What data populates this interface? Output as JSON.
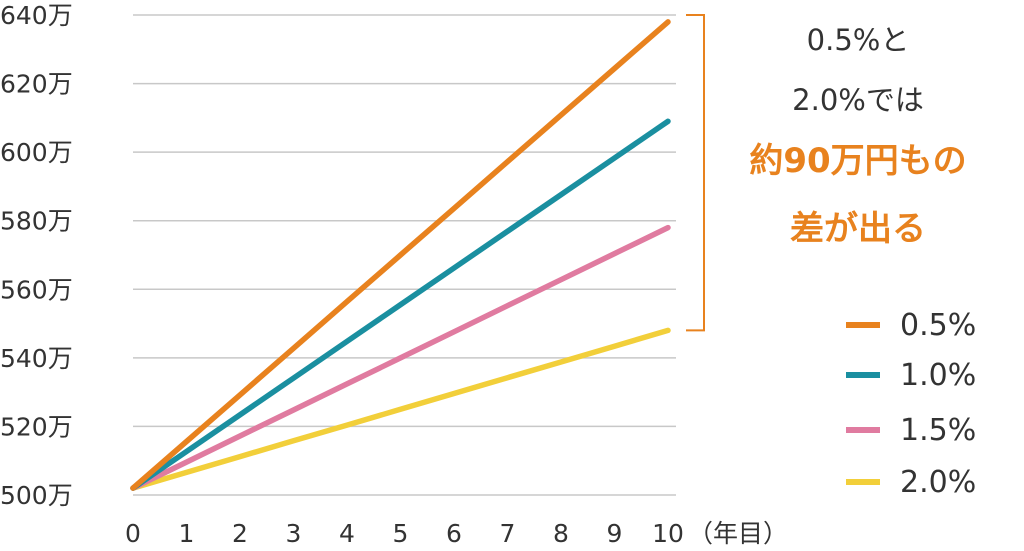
{
  "chart_data": {
    "type": "line",
    "x": [
      0,
      1,
      2,
      3,
      4,
      5,
      6,
      7,
      8,
      9,
      10
    ],
    "x_tick_labels": [
      "0",
      "1",
      "2",
      "3",
      "4",
      "5",
      "6",
      "7",
      "8",
      "9",
      "10"
    ],
    "xlabel": "（年目）",
    "xlim": [
      0,
      10
    ],
    "ylim": [
      500,
      640
    ],
    "y_ticks": [
      500,
      520,
      540,
      560,
      580,
      600,
      620,
      640
    ],
    "y_tick_labels": [
      "500万",
      "520万",
      "540万",
      "560万",
      "580万",
      "600万",
      "620万",
      "640万"
    ],
    "grid": true,
    "legend_position": "right",
    "series": [
      {
        "name": "0.5%",
        "color": "#e8821e",
        "values": [
          502,
          515.6,
          529.2,
          542.8,
          556.4,
          570,
          583.6,
          597.2,
          610.8,
          624.4,
          638
        ]
      },
      {
        "name": "1.0%",
        "color": "#1a8fa0",
        "values": [
          502,
          512.7,
          523.4,
          534.1,
          544.8,
          555.5,
          566.2,
          576.9,
          587.6,
          598.3,
          609
        ]
      },
      {
        "name": "1.5%",
        "color": "#e07ba0",
        "values": [
          502,
          509.6,
          517.2,
          524.8,
          532.4,
          540,
          547.6,
          555.2,
          562.8,
          570.4,
          578
        ]
      },
      {
        "name": "2.0%",
        "color": "#f2cf3a",
        "values": [
          502,
          506.6,
          511.2,
          515.8,
          520.4,
          525,
          529.6,
          534.2,
          538.8,
          543.4,
          548
        ]
      }
    ],
    "annotation": {
      "bracket_range": [
        548,
        640
      ],
      "bracket_color": "#e8821e",
      "lines": [
        {
          "text": "0.5%と",
          "emphasis": false
        },
        {
          "text": "2.0%では",
          "emphasis": false
        },
        {
          "text": "約90万円もの",
          "emphasis": true
        },
        {
          "text": "差が出る",
          "emphasis": true
        }
      ],
      "emphasis_color": "#e8821e"
    }
  }
}
